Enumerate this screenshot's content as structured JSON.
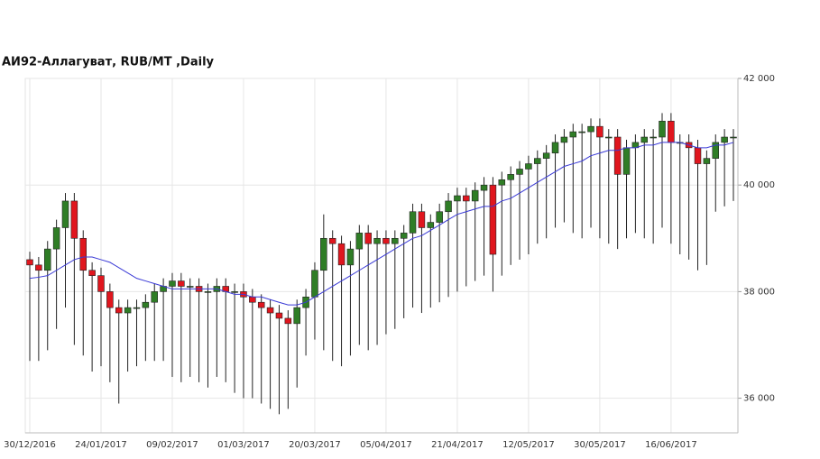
{
  "chart_data": {
    "type": "candlestick",
    "title": "АИ92-Аллагуват,  RUB/MT ,Daily",
    "categories": [
      "30/12/2016",
      null,
      null,
      null,
      null,
      null,
      null,
      null,
      "24/01/2017",
      null,
      null,
      null,
      null,
      null,
      null,
      null,
      "09/02/2017",
      null,
      null,
      null,
      null,
      null,
      null,
      null,
      "01/03/2017",
      null,
      null,
      null,
      null,
      null,
      null,
      null,
      "20/03/2017",
      null,
      null,
      null,
      null,
      null,
      null,
      null,
      "05/04/2017",
      null,
      null,
      null,
      null,
      null,
      null,
      null,
      "21/04/2017",
      null,
      null,
      null,
      null,
      null,
      null,
      null,
      "12/05/2017",
      null,
      null,
      null,
      null,
      null,
      null,
      null,
      "30/05/2017",
      null,
      null,
      null,
      null,
      null,
      null,
      null,
      "16/06/2017",
      null,
      null,
      null,
      null,
      null,
      null,
      null
    ],
    "open": [
      38600,
      38500,
      38400,
      38800,
      39200,
      39700,
      39000,
      38400,
      38300,
      38000,
      37700,
      37600,
      37700,
      37700,
      37800,
      38000,
      38100,
      38200,
      38100,
      38100,
      38000,
      38000,
      38100,
      38000,
      38000,
      37900,
      37800,
      37700,
      37600,
      37500,
      37400,
      37700,
      37900,
      38400,
      39000,
      38900,
      38500,
      38800,
      39100,
      38900,
      39000,
      38900,
      39000,
      39100,
      39500,
      39200,
      39300,
      39500,
      39700,
      39800,
      39700,
      39900,
      40000,
      40000,
      40100,
      40200,
      40300,
      40400,
      40500,
      40600,
      40800,
      40900,
      41000,
      41000,
      41100,
      40900,
      40900,
      40200,
      40700,
      40800,
      40900,
      40900,
      41200,
      40800,
      40800,
      40700,
      40400,
      40500,
      40800,
      40900
    ],
    "high": [
      38750,
      38650,
      38950,
      39350,
      39850,
      39850,
      39150,
      38550,
      38450,
      38150,
      37850,
      37850,
      37850,
      37950,
      38150,
      38250,
      38350,
      38350,
      38250,
      38250,
      38150,
      38250,
      38250,
      38150,
      38150,
      38050,
      37950,
      37850,
      37750,
      37650,
      37850,
      38050,
      38550,
      39450,
      39150,
      39050,
      38950,
      39250,
      39250,
      39150,
      39150,
      39150,
      39250,
      39650,
      39650,
      39450,
      39650,
      39850,
      39950,
      39950,
      40050,
      40150,
      40150,
      40250,
      40350,
      40450,
      40550,
      40650,
      40750,
      40950,
      41050,
      41150,
      41150,
      41250,
      41250,
      41050,
      41050,
      40850,
      40950,
      41050,
      41050,
      41350,
      41350,
      40950,
      40950,
      40850,
      40650,
      40950,
      41050,
      41050
    ],
    "low": [
      36700,
      36700,
      36900,
      37300,
      37700,
      37000,
      36800,
      36500,
      36600,
      36300,
      35900,
      36500,
      36600,
      36700,
      36700,
      36700,
      36400,
      36300,
      36400,
      36300,
      36200,
      36400,
      36300,
      36100,
      36000,
      36000,
      35900,
      35800,
      35700,
      35800,
      36200,
      36800,
      37100,
      36900,
      36700,
      36600,
      36800,
      37000,
      36900,
      37000,
      37200,
      37300,
      37500,
      37700,
      37600,
      37700,
      37800,
      37900,
      38000,
      38100,
      38200,
      38300,
      38000,
      38300,
      38500,
      38600,
      38700,
      38900,
      39000,
      39200,
      39300,
      39100,
      39000,
      39200,
      39000,
      38900,
      38800,
      39000,
      39100,
      39000,
      38900,
      39200,
      38900,
      38700,
      38600,
      38400,
      38500,
      39500,
      39600,
      39700
    ],
    "close": [
      38500,
      38400,
      38800,
      39200,
      39700,
      39000,
      38400,
      38300,
      38000,
      37700,
      37600,
      37700,
      37700,
      37800,
      38000,
      38100,
      38200,
      38100,
      38100,
      38000,
      38000,
      38100,
      38000,
      38000,
      37900,
      37800,
      37700,
      37600,
      37500,
      37400,
      37700,
      37900,
      38400,
      39000,
      38900,
      38500,
      38800,
      39100,
      38900,
      39000,
      38900,
      39000,
      39100,
      39500,
      39200,
      39300,
      39500,
      39700,
      39800,
      39700,
      39900,
      40000,
      38700,
      40100,
      40200,
      40300,
      40400,
      40500,
      40600,
      40800,
      40900,
      41000,
      41000,
      41100,
      40900,
      40900,
      40200,
      40700,
      40800,
      40900,
      40900,
      41200,
      40800,
      40800,
      40700,
      40400,
      40500,
      40800,
      40900,
      40900
    ],
    "up_color": "#2f7d26",
    "down_color": "#e0161e",
    "moving_average": {
      "color": "#3a3ad6",
      "values": [
        38250,
        38270,
        38300,
        38400,
        38500,
        38600,
        38650,
        38650,
        38600,
        38550,
        38450,
        38350,
        38250,
        38200,
        38150,
        38100,
        38050,
        38050,
        38050,
        38050,
        38050,
        38050,
        38000,
        37950,
        37950,
        37900,
        37900,
        37850,
        37800,
        37750,
        37750,
        37800,
        37900,
        38000,
        38100,
        38200,
        38300,
        38400,
        38500,
        38600,
        38700,
        38800,
        38900,
        39000,
        39050,
        39150,
        39250,
        39350,
        39450,
        39500,
        39550,
        39600,
        39600,
        39700,
        39750,
        39850,
        39950,
        40050,
        40150,
        40250,
        40350,
        40400,
        40450,
        40550,
        40600,
        40650,
        40650,
        40700,
        40700,
        40750,
        40750,
        40800,
        40800,
        40800,
        40750,
        40700,
        40700,
        40750,
        40750,
        40800
      ]
    },
    "ylim": [
      35350,
      42000
    ],
    "yticks": [
      {
        "value": 36000,
        "label": "36 000"
      },
      {
        "value": 38000,
        "label": "38 000"
      },
      {
        "value": 40000,
        "label": "40 000"
      },
      {
        "value": 42000,
        "label": "42 000"
      }
    ],
    "grid": true
  }
}
